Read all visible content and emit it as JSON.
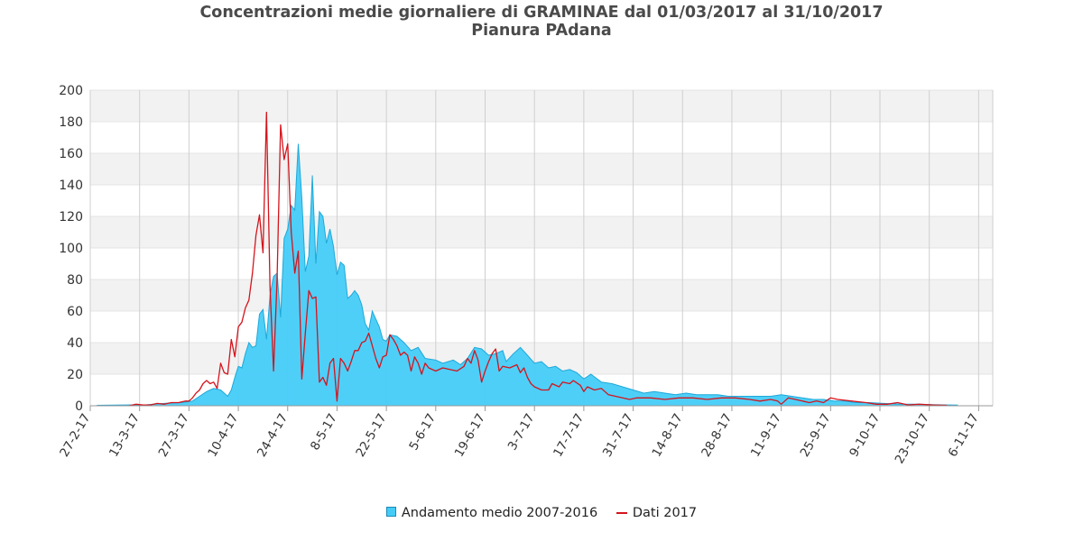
{
  "chart_data": {
    "type": "area",
    "title": "Concentrazioni medie giornaliere di GRAMINAE dal 01/03/2017 al 31/10/2017",
    "subtitle": "Pianura PAdana",
    "xlabel": "",
    "ylabel": "",
    "ylim": [
      0,
      200
    ],
    "yticks": [
      0,
      20,
      40,
      60,
      80,
      100,
      120,
      140,
      160,
      180,
      200
    ],
    "xlim": [
      "2017-02-27",
      "2017-11-10"
    ],
    "xticks": [
      "27-2-17",
      "13-3-17",
      "27-3-17",
      "10-4-17",
      "24-4-17",
      "8-5-17",
      "22-5-17",
      "5-6-17",
      "19-6-17",
      "3-7-17",
      "17-7-17",
      "31-7-17",
      "14-8-17",
      "28-8-17",
      "11-9-17",
      "25-9-17",
      "9-10-17",
      "23-10-17",
      "6-11-17"
    ],
    "grid": "on",
    "legend_position": "bottom-center",
    "series": [
      {
        "name": "Andamento medio 2007-2016",
        "type": "area",
        "color": "#44ccf8",
        "stroke": "#1fa8d8",
        "points": [
          [
            "2017-03-01",
            0.3
          ],
          [
            "2017-03-15",
            0.6
          ],
          [
            "2017-03-20",
            1.5
          ],
          [
            "2017-03-25",
            2
          ],
          [
            "2017-03-28",
            3
          ],
          [
            "2017-03-30",
            6
          ],
          [
            "2017-04-01",
            9
          ],
          [
            "2017-04-03",
            11
          ],
          [
            "2017-04-05",
            10
          ],
          [
            "2017-04-07",
            6
          ],
          [
            "2017-04-08",
            10
          ],
          [
            "2017-04-09",
            18
          ],
          [
            "2017-04-10",
            25
          ],
          [
            "2017-04-11",
            24
          ],
          [
            "2017-04-12",
            33
          ],
          [
            "2017-04-13",
            40
          ],
          [
            "2017-04-14",
            37
          ],
          [
            "2017-04-15",
            38
          ],
          [
            "2017-04-16",
            58
          ],
          [
            "2017-04-17",
            61
          ],
          [
            "2017-04-18",
            42
          ],
          [
            "2017-04-19",
            70
          ],
          [
            "2017-04-20",
            82
          ],
          [
            "2017-04-21",
            84
          ],
          [
            "2017-04-22",
            56
          ],
          [
            "2017-04-23",
            106
          ],
          [
            "2017-04-24",
            112
          ],
          [
            "2017-04-25",
            127
          ],
          [
            "2017-04-26",
            124
          ],
          [
            "2017-04-27",
            166
          ],
          [
            "2017-04-28",
            132
          ],
          [
            "2017-04-29",
            85
          ],
          [
            "2017-04-30",
            95
          ],
          [
            "2017-05-01",
            146
          ],
          [
            "2017-05-02",
            90
          ],
          [
            "2017-05-03",
            123
          ],
          [
            "2017-05-04",
            120
          ],
          [
            "2017-05-05",
            103
          ],
          [
            "2017-05-06",
            112
          ],
          [
            "2017-05-07",
            101
          ],
          [
            "2017-05-08",
            83
          ],
          [
            "2017-05-09",
            91
          ],
          [
            "2017-05-10",
            89
          ],
          [
            "2017-05-11",
            68
          ],
          [
            "2017-05-12",
            70
          ],
          [
            "2017-05-13",
            73
          ],
          [
            "2017-05-14",
            70
          ],
          [
            "2017-05-15",
            64
          ],
          [
            "2017-05-16",
            52
          ],
          [
            "2017-05-17",
            48
          ],
          [
            "2017-05-18",
            60
          ],
          [
            "2017-05-19",
            55
          ],
          [
            "2017-05-20",
            50
          ],
          [
            "2017-05-21",
            42
          ],
          [
            "2017-05-22",
            41
          ],
          [
            "2017-05-23",
            45
          ],
          [
            "2017-05-25",
            44
          ],
          [
            "2017-05-27",
            40
          ],
          [
            "2017-05-29",
            35
          ],
          [
            "2017-05-31",
            37
          ],
          [
            "2017-06-02",
            30
          ],
          [
            "2017-06-05",
            29
          ],
          [
            "2017-06-07",
            27
          ],
          [
            "2017-06-10",
            29
          ],
          [
            "2017-06-12",
            26
          ],
          [
            "2017-06-14",
            30
          ],
          [
            "2017-06-16",
            37
          ],
          [
            "2017-06-18",
            36
          ],
          [
            "2017-06-20",
            32
          ],
          [
            "2017-06-22",
            33
          ],
          [
            "2017-06-24",
            35
          ],
          [
            "2017-06-25",
            28
          ],
          [
            "2017-06-27",
            33
          ],
          [
            "2017-06-29",
            37
          ],
          [
            "2017-07-01",
            32
          ],
          [
            "2017-07-03",
            27
          ],
          [
            "2017-07-05",
            28
          ],
          [
            "2017-07-07",
            24
          ],
          [
            "2017-07-09",
            25
          ],
          [
            "2017-07-11",
            22
          ],
          [
            "2017-07-13",
            23
          ],
          [
            "2017-07-15",
            21
          ],
          [
            "2017-07-17",
            17
          ],
          [
            "2017-07-19",
            20
          ],
          [
            "2017-07-22",
            15
          ],
          [
            "2017-07-25",
            14
          ],
          [
            "2017-07-28",
            12
          ],
          [
            "2017-07-31",
            10
          ],
          [
            "2017-08-03",
            8
          ],
          [
            "2017-08-06",
            9
          ],
          [
            "2017-08-09",
            8
          ],
          [
            "2017-08-12",
            7
          ],
          [
            "2017-08-15",
            8
          ],
          [
            "2017-08-18",
            7
          ],
          [
            "2017-08-21",
            7
          ],
          [
            "2017-08-24",
            7
          ],
          [
            "2017-08-27",
            6
          ],
          [
            "2017-08-30",
            6
          ],
          [
            "2017-09-02",
            6
          ],
          [
            "2017-09-05",
            6
          ],
          [
            "2017-09-08",
            6
          ],
          [
            "2017-09-11",
            7
          ],
          [
            "2017-09-14",
            6
          ],
          [
            "2017-09-17",
            5
          ],
          [
            "2017-09-20",
            4
          ],
          [
            "2017-09-23",
            4
          ],
          [
            "2017-09-26",
            3
          ],
          [
            "2017-09-29",
            3
          ],
          [
            "2017-10-02",
            2
          ],
          [
            "2017-10-06",
            2
          ],
          [
            "2017-10-10",
            1.5
          ],
          [
            "2017-10-15",
            1
          ],
          [
            "2017-10-20",
            1
          ],
          [
            "2017-10-25",
            0.6
          ],
          [
            "2017-10-31",
            0.4
          ]
        ]
      },
      {
        "name": "Dati 2017",
        "type": "line",
        "color": "#d4141c",
        "points": [
          [
            "2017-03-10",
            0
          ],
          [
            "2017-03-12",
            1
          ],
          [
            "2017-03-14",
            0.5
          ],
          [
            "2017-03-16",
            0.5
          ],
          [
            "2017-03-18",
            1.5
          ],
          [
            "2017-03-20",
            1
          ],
          [
            "2017-03-22",
            2
          ],
          [
            "2017-03-24",
            2
          ],
          [
            "2017-03-26",
            3
          ],
          [
            "2017-03-27",
            3
          ],
          [
            "2017-03-28",
            5
          ],
          [
            "2017-03-29",
            8
          ],
          [
            "2017-03-30",
            10
          ],
          [
            "2017-03-31",
            14
          ],
          [
            "2017-04-01",
            16
          ],
          [
            "2017-04-02",
            14
          ],
          [
            "2017-04-03",
            15
          ],
          [
            "2017-04-04",
            11
          ],
          [
            "2017-04-05",
            27
          ],
          [
            "2017-04-06",
            21
          ],
          [
            "2017-04-07",
            20
          ],
          [
            "2017-04-08",
            42
          ],
          [
            "2017-04-09",
            31
          ],
          [
            "2017-04-10",
            50
          ],
          [
            "2017-04-11",
            53
          ],
          [
            "2017-04-12",
            62
          ],
          [
            "2017-04-13",
            67
          ],
          [
            "2017-04-14",
            84
          ],
          [
            "2017-04-15",
            108
          ],
          [
            "2017-04-16",
            121
          ],
          [
            "2017-04-17",
            97
          ],
          [
            "2017-04-18",
            186
          ],
          [
            "2017-04-19",
            75
          ],
          [
            "2017-04-20",
            22
          ],
          [
            "2017-04-21",
            80
          ],
          [
            "2017-04-22",
            178
          ],
          [
            "2017-04-23",
            156
          ],
          [
            "2017-04-24",
            166
          ],
          [
            "2017-04-25",
            110
          ],
          [
            "2017-04-26",
            84
          ],
          [
            "2017-04-27",
            98
          ],
          [
            "2017-04-28",
            17
          ],
          [
            "2017-04-29",
            46
          ],
          [
            "2017-04-30",
            73
          ],
          [
            "2017-05-01",
            68
          ],
          [
            "2017-05-02",
            69
          ],
          [
            "2017-05-03",
            15
          ],
          [
            "2017-05-04",
            18
          ],
          [
            "2017-05-05",
            13
          ],
          [
            "2017-05-06",
            27
          ],
          [
            "2017-05-07",
            30
          ],
          [
            "2017-05-08",
            3
          ],
          [
            "2017-05-09",
            30
          ],
          [
            "2017-05-10",
            27
          ],
          [
            "2017-05-11",
            22
          ],
          [
            "2017-05-12",
            28
          ],
          [
            "2017-05-13",
            35
          ],
          [
            "2017-05-14",
            35
          ],
          [
            "2017-05-15",
            40
          ],
          [
            "2017-05-16",
            41
          ],
          [
            "2017-05-17",
            46
          ],
          [
            "2017-05-18",
            38
          ],
          [
            "2017-05-19",
            30
          ],
          [
            "2017-05-20",
            24
          ],
          [
            "2017-05-21",
            31
          ],
          [
            "2017-05-22",
            32
          ],
          [
            "2017-05-23",
            45
          ],
          [
            "2017-05-24",
            42
          ],
          [
            "2017-05-25",
            38
          ],
          [
            "2017-05-26",
            32
          ],
          [
            "2017-05-27",
            34
          ],
          [
            "2017-05-28",
            32
          ],
          [
            "2017-05-29",
            22
          ],
          [
            "2017-05-30",
            31
          ],
          [
            "2017-05-31",
            27
          ],
          [
            "2017-06-01",
            20
          ],
          [
            "2017-06-02",
            27
          ],
          [
            "2017-06-03",
            24
          ],
          [
            "2017-06-05",
            22
          ],
          [
            "2017-06-07",
            24
          ],
          [
            "2017-06-09",
            23
          ],
          [
            "2017-06-11",
            22
          ],
          [
            "2017-06-13",
            25
          ],
          [
            "2017-06-14",
            30
          ],
          [
            "2017-06-15",
            27
          ],
          [
            "2017-06-16",
            35
          ],
          [
            "2017-06-17",
            29
          ],
          [
            "2017-06-18",
            15
          ],
          [
            "2017-06-19",
            22
          ],
          [
            "2017-06-20",
            28
          ],
          [
            "2017-06-21",
            33
          ],
          [
            "2017-06-22",
            36
          ],
          [
            "2017-06-23",
            22
          ],
          [
            "2017-06-24",
            25
          ],
          [
            "2017-06-26",
            24
          ],
          [
            "2017-06-28",
            26
          ],
          [
            "2017-06-29",
            21
          ],
          [
            "2017-06-30",
            24
          ],
          [
            "2017-07-01",
            18
          ],
          [
            "2017-07-02",
            14
          ],
          [
            "2017-07-03",
            12
          ],
          [
            "2017-07-05",
            10
          ],
          [
            "2017-07-07",
            10
          ],
          [
            "2017-07-08",
            14
          ],
          [
            "2017-07-10",
            12
          ],
          [
            "2017-07-11",
            15
          ],
          [
            "2017-07-13",
            14
          ],
          [
            "2017-07-14",
            16
          ],
          [
            "2017-07-16",
            13
          ],
          [
            "2017-07-17",
            9
          ],
          [
            "2017-07-18",
            12
          ],
          [
            "2017-07-20",
            10
          ],
          [
            "2017-07-22",
            11
          ],
          [
            "2017-07-24",
            7
          ],
          [
            "2017-07-26",
            6
          ],
          [
            "2017-07-28",
            5
          ],
          [
            "2017-07-30",
            4
          ],
          [
            "2017-08-01",
            5
          ],
          [
            "2017-08-05",
            5
          ],
          [
            "2017-08-09",
            4
          ],
          [
            "2017-08-13",
            5
          ],
          [
            "2017-08-17",
            5
          ],
          [
            "2017-08-21",
            4
          ],
          [
            "2017-08-25",
            5
          ],
          [
            "2017-08-29",
            5
          ],
          [
            "2017-09-02",
            4
          ],
          [
            "2017-09-05",
            3
          ],
          [
            "2017-09-08",
            4
          ],
          [
            "2017-09-10",
            3
          ],
          [
            "2017-09-11",
            1
          ],
          [
            "2017-09-13",
            5
          ],
          [
            "2017-09-15",
            4
          ],
          [
            "2017-09-17",
            3
          ],
          [
            "2017-09-19",
            2
          ],
          [
            "2017-09-21",
            3
          ],
          [
            "2017-09-23",
            2
          ],
          [
            "2017-09-25",
            5
          ],
          [
            "2017-09-27",
            4
          ],
          [
            "2017-10-01",
            3
          ],
          [
            "2017-10-05",
            2
          ],
          [
            "2017-10-08",
            1
          ],
          [
            "2017-10-11",
            1
          ],
          [
            "2017-10-14",
            2
          ],
          [
            "2017-10-17",
            0.5
          ],
          [
            "2017-10-20",
            1
          ],
          [
            "2017-10-24",
            0.5
          ],
          [
            "2017-10-28",
            0.3
          ]
        ]
      }
    ]
  }
}
